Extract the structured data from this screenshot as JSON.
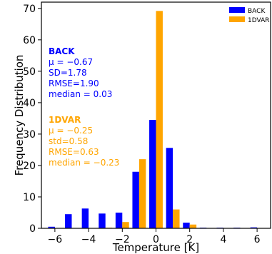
{
  "chart_data": {
    "type": "bar",
    "xlabel": "Temperature [K]",
    "ylabel": "Frequency Distribution",
    "xlim": [
      -6.8,
      6.8
    ],
    "ylim": [
      0,
      72
    ],
    "xticks": [
      -6,
      -4,
      -2,
      0,
      2,
      4,
      6
    ],
    "yticks": [
      0,
      10,
      20,
      30,
      40,
      50,
      60,
      70
    ],
    "grid": false,
    "legend_position": "top-right",
    "bin_width": 0.4,
    "series": [
      {
        "name": "BACK",
        "color": "#0000ff",
        "offset": -0.2,
        "centers": [
          -6,
          -5,
          -4,
          -3,
          -2,
          -1,
          0,
          1,
          2,
          3,
          4,
          5,
          6
        ],
        "values": [
          0.5,
          4.5,
          6.3,
          4.7,
          5.0,
          18,
          34.5,
          25.6,
          1.8,
          0.2,
          0.2,
          0.2,
          0.3
        ]
      },
      {
        "name": "1DVAR",
        "color": "#ffa500",
        "offset": 0.2,
        "centers": [
          -6,
          -5,
          -4,
          -3,
          -2,
          -1,
          0,
          1,
          2,
          3,
          4,
          5,
          6
        ],
        "values": [
          0.1,
          0.1,
          0.1,
          0.2,
          2.0,
          22,
          69.2,
          6.0,
          1.2,
          0.1,
          0.1,
          0.1,
          0.1
        ]
      }
    ],
    "annotations": [
      {
        "color": "#0000ff",
        "title": "BACK",
        "lines": [
          "μ = −0.67",
          "SD=1.78",
          "RMSE=1.90",
          "median = 0.03"
        ]
      },
      {
        "color": "#ffa500",
        "title": "1DVAR",
        "lines": [
          "μ = −0.25",
          "std=0.58",
          "RMSE=0.63",
          "median = −0.23"
        ]
      }
    ]
  }
}
